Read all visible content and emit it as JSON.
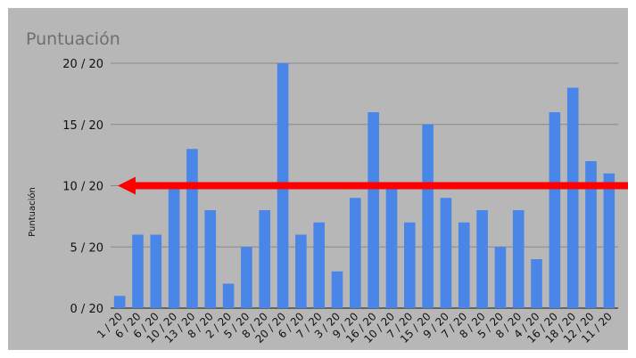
{
  "chart_data": {
    "type": "bar",
    "title": "Puntuación",
    "xlabel": "",
    "ylabel": "Puntuación",
    "ylim": [
      0,
      20
    ],
    "y_ticks": [
      "0 / 20",
      "5 / 20",
      "10 / 20",
      "15 / 20",
      "20 / 20"
    ],
    "y_tick_values": [
      0,
      5,
      10,
      15,
      20
    ],
    "grid": true,
    "categories": [
      "1 / 20",
      "6 / 20",
      "6 / 20",
      "10 / 20",
      "13 / 20",
      "8 / 20",
      "2 / 20",
      "5 / 20",
      "8 / 20",
      "20 / 20",
      "6 / 20",
      "7 / 20",
      "3 / 20",
      "9 / 20",
      "16 / 20",
      "10 / 20",
      "7 / 20",
      "15 / 20",
      "9 / 20",
      "7 / 20",
      "8 / 20",
      "5 / 20",
      "8 / 20",
      "4 / 20",
      "16 / 20",
      "18 / 20",
      "12 / 20",
      "11 / 20"
    ],
    "values": [
      1,
      6,
      6,
      10,
      13,
      8,
      2,
      5,
      8,
      20,
      6,
      7,
      3,
      9,
      16,
      10,
      7,
      15,
      9,
      7,
      8,
      5,
      8,
      4,
      16,
      18,
      12,
      11
    ],
    "bar_color": "#4a86e8",
    "background": "#b7b7b7",
    "annotation": {
      "type": "arrow",
      "y_value": 10,
      "color": "#ff0000"
    }
  }
}
